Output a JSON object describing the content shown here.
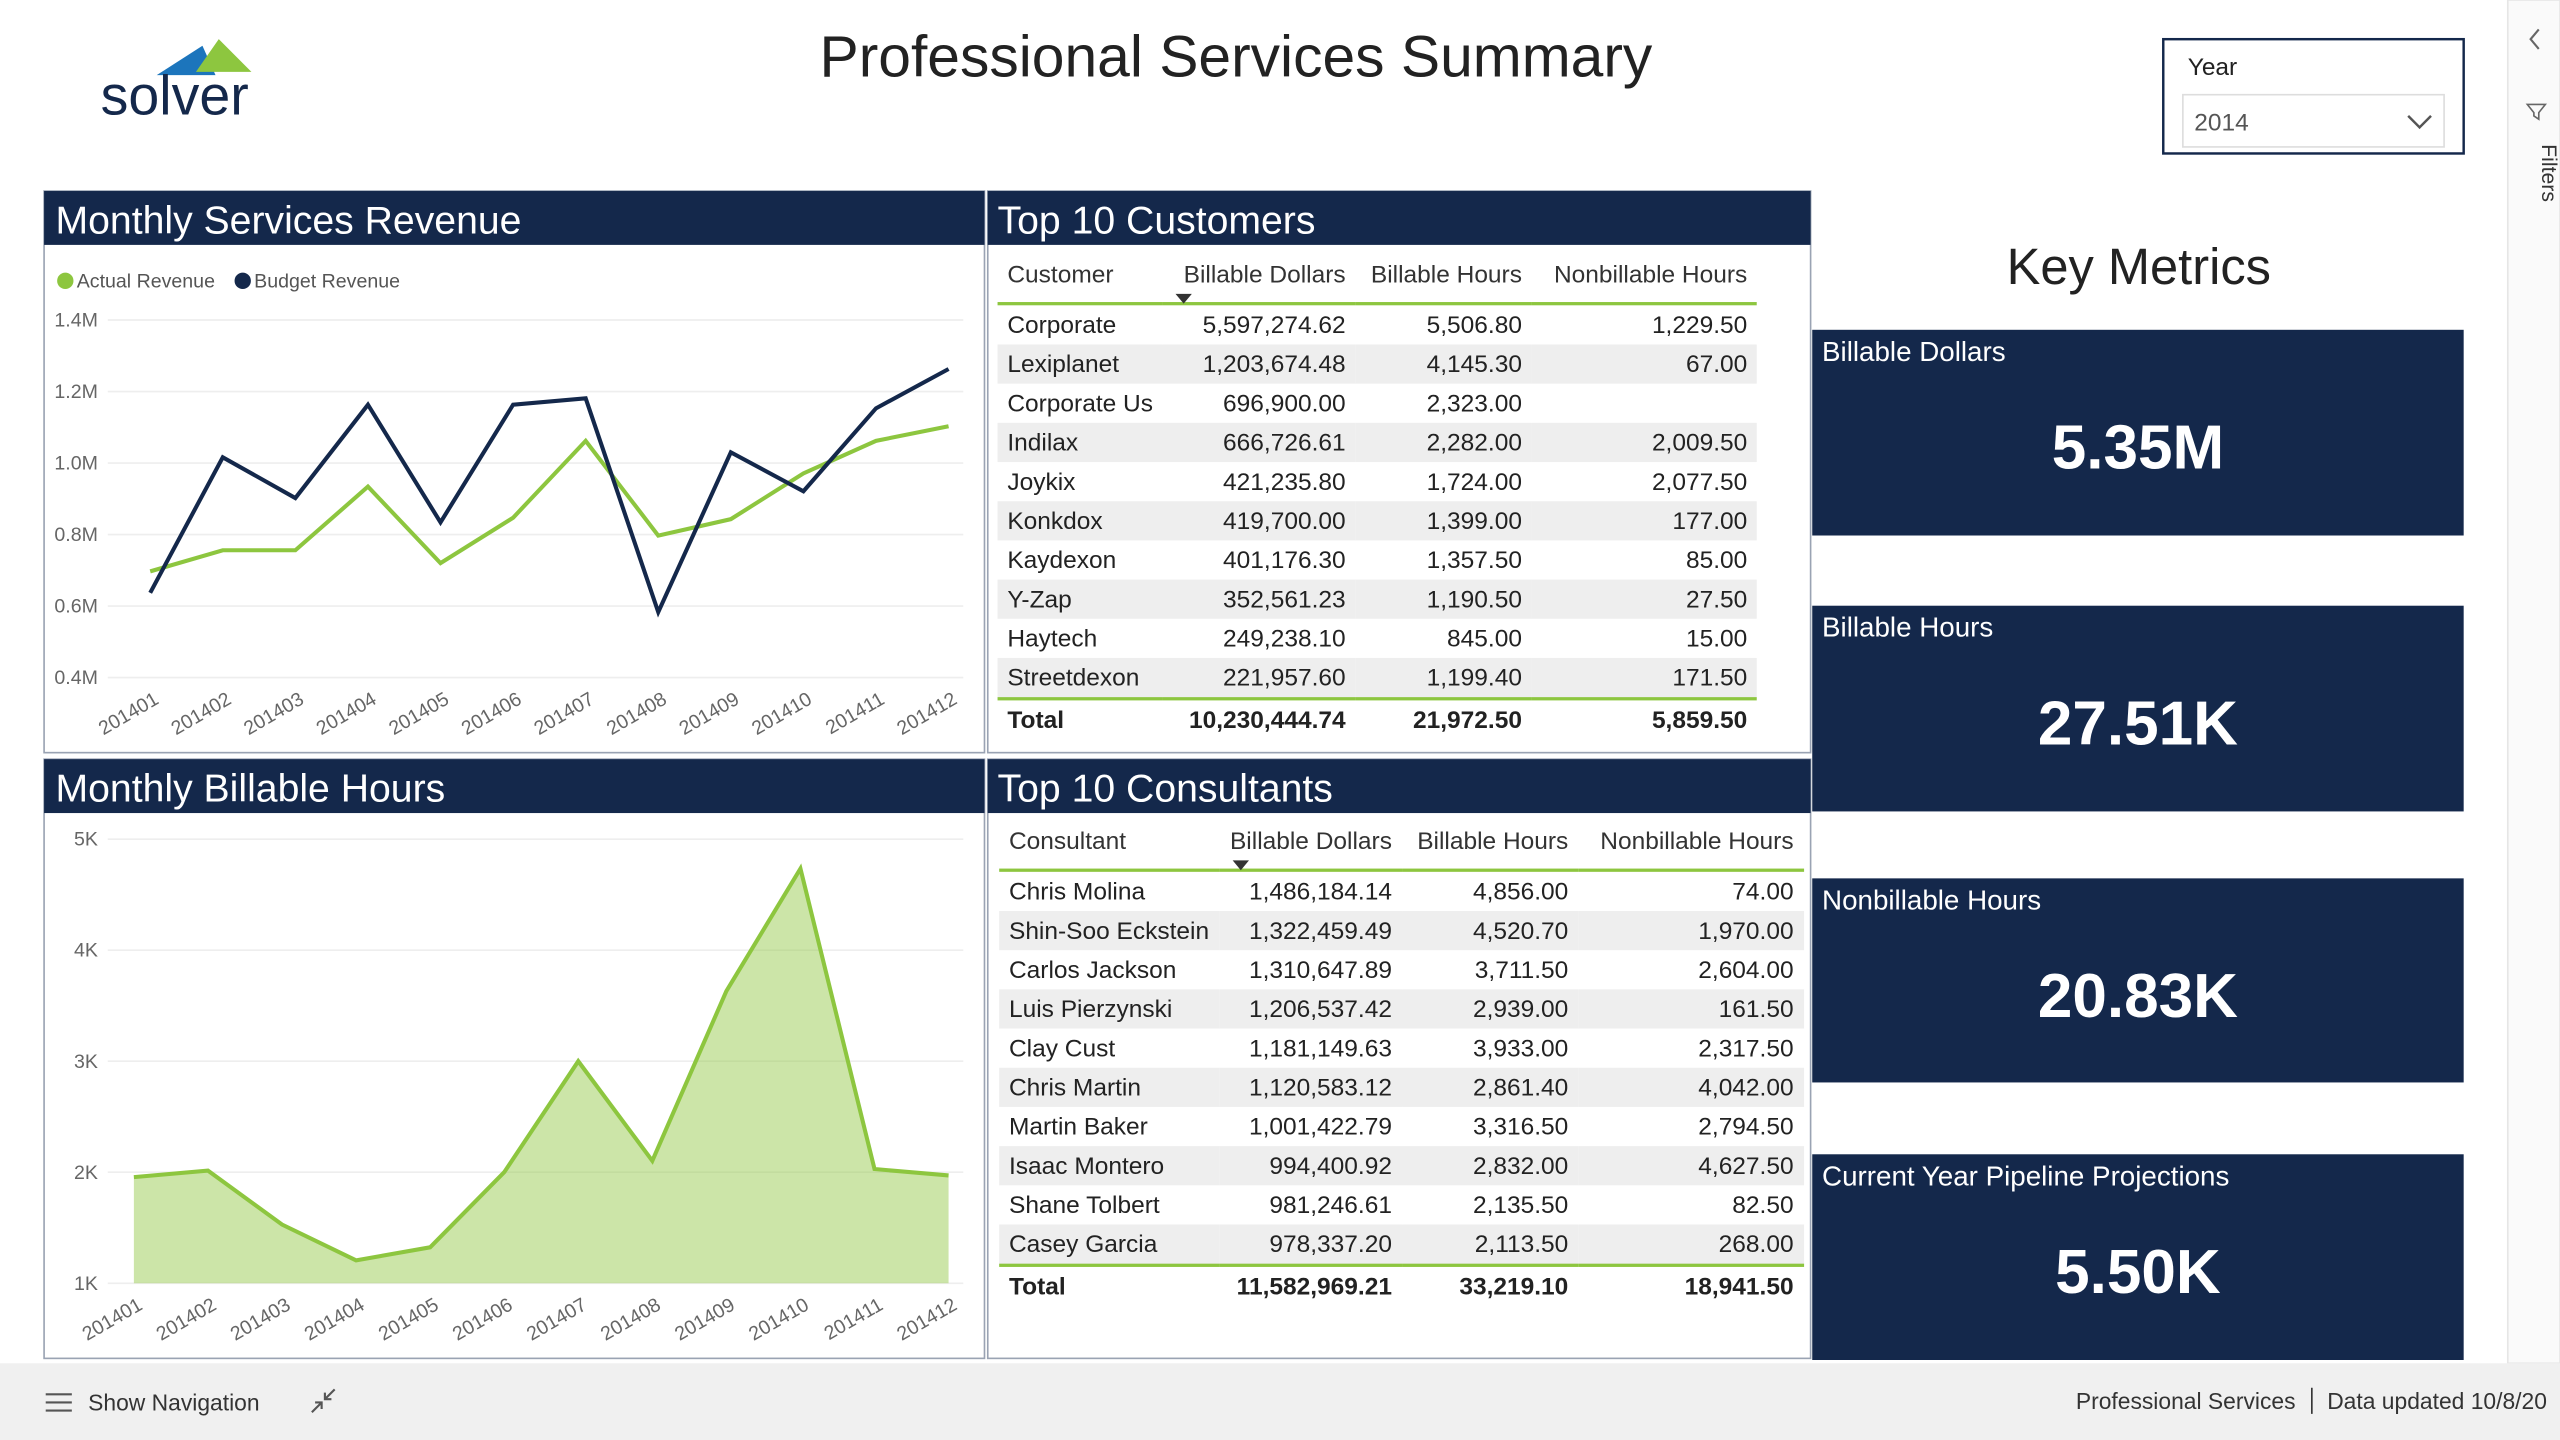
{
  "header": {
    "logo": "solver",
    "title": "Professional Services Summary",
    "slicer": {
      "label": "Year",
      "value": "2014"
    },
    "side_panel": "Filters"
  },
  "chart_data": [
    {
      "type": "line",
      "title": "Monthly Services Revenue",
      "categories": [
        "201401",
        "201402",
        "201403",
        "201404",
        "201405",
        "201406",
        "201407",
        "201408",
        "201409",
        "201410",
        "201411",
        "201412"
      ],
      "series": [
        {
          "name": "Actual Revenue",
          "color": "#8dc63f",
          "values": [
            697000,
            756000,
            756000,
            934000,
            720000,
            847000,
            1062000,
            797000,
            843000,
            971000,
            1062000,
            1103000
          ]
        },
        {
          "name": "Budget Revenue",
          "color": "#14284b",
          "values": [
            637000,
            1016000,
            902000,
            1163000,
            834000,
            1163000,
            1181000,
            583000,
            1030000,
            921000,
            1153000,
            1263000
          ]
        }
      ],
      "ylim": [
        400000,
        1400000
      ],
      "yticks": [
        {
          "value": 400000,
          "label": "0.4M"
        },
        {
          "value": 600000,
          "label": "0.6M"
        },
        {
          "value": 800000,
          "label": "0.8M"
        },
        {
          "value": 1000000,
          "label": "1.0M"
        },
        {
          "value": 1200000,
          "label": "1.2M"
        },
        {
          "value": 1400000,
          "label": "1.4M"
        }
      ],
      "grid": true,
      "legend": "top-left"
    },
    {
      "type": "area",
      "title": "Monthly Billable Hours",
      "categories": [
        "201401",
        "201402",
        "201403",
        "201404",
        "201405",
        "201406",
        "201407",
        "201408",
        "201409",
        "201410",
        "201411",
        "201412"
      ],
      "values": [
        1956,
        2015,
        1529,
        1206,
        1324,
        2000,
        3000,
        2103,
        3632,
        4735,
        2029,
        1971
      ],
      "color": "#8dc63f",
      "ylim": [
        1000,
        5000
      ],
      "yticks": [
        {
          "value": 1000,
          "label": "1K"
        },
        {
          "value": 2000,
          "label": "2K"
        },
        {
          "value": 3000,
          "label": "3K"
        },
        {
          "value": 4000,
          "label": "4K"
        },
        {
          "value": 5000,
          "label": "5K"
        }
      ],
      "grid": true
    }
  ],
  "tables": [
    {
      "title": "Top 10 Customers",
      "columns": [
        "Customer",
        "Billable Dollars",
        "Billable Hours",
        "Nonbillable Hours"
      ],
      "rows": [
        [
          "Corporate",
          "5,597,274.62",
          "5,506.80",
          "1,229.50"
        ],
        [
          "Lexiplanet",
          "1,203,674.48",
          "4,145.30",
          "67.00"
        ],
        [
          "Corporate Us",
          "696,900.00",
          "2,323.00",
          ""
        ],
        [
          "Indilax",
          "666,726.61",
          "2,282.00",
          "2,009.50"
        ],
        [
          "Joykix",
          "421,235.80",
          "1,724.00",
          "2,077.50"
        ],
        [
          "Konkdox",
          "419,700.00",
          "1,399.00",
          "177.00"
        ],
        [
          "Kaydexon",
          "401,176.30",
          "1,357.50",
          "85.00"
        ],
        [
          "Y-Zap",
          "352,561.23",
          "1,190.50",
          "27.50"
        ],
        [
          "Haytech",
          "249,238.10",
          "845.00",
          "15.00"
        ],
        [
          "Streetdexon",
          "221,957.60",
          "1,199.40",
          "171.50"
        ]
      ],
      "total": [
        "Total",
        "10,230,444.74",
        "21,972.50",
        "5,859.50"
      ]
    },
    {
      "title": "Top 10 Consultants",
      "columns": [
        "Consultant",
        "Billable Dollars",
        "Billable Hours",
        "Nonbillable Hours"
      ],
      "rows": [
        [
          "Chris Molina",
          "1,486,184.14",
          "4,856.00",
          "74.00"
        ],
        [
          "Shin-Soo Eckstein",
          "1,322,459.49",
          "4,520.70",
          "1,970.00"
        ],
        [
          "Carlos Jackson",
          "1,310,647.89",
          "3,711.50",
          "2,604.00"
        ],
        [
          "Luis Pierzynski",
          "1,206,537.42",
          "2,939.00",
          "161.50"
        ],
        [
          "Clay Cust",
          "1,181,149.63",
          "3,933.00",
          "2,317.50"
        ],
        [
          "Chris Martin",
          "1,120,583.12",
          "2,861.40",
          "4,042.00"
        ],
        [
          "Martin Baker",
          "1,001,422.79",
          "3,316.50",
          "2,794.50"
        ],
        [
          "Isaac Montero",
          "994,400.92",
          "2,832.00",
          "4,627.50"
        ],
        [
          "Shane Tolbert",
          "981,246.61",
          "2,135.50",
          "82.50"
        ],
        [
          "Casey Garcia",
          "978,337.20",
          "2,113.50",
          "268.00"
        ]
      ],
      "total": [
        "Total",
        "11,582,969.21",
        "33,219.10",
        "18,941.50"
      ]
    }
  ],
  "key_metrics": {
    "title": "Key Metrics",
    "cards": [
      {
        "label": "Billable Dollars",
        "value": "5.35M"
      },
      {
        "label": "Billable Hours",
        "value": "27.51K"
      },
      {
        "label": "Nonbillable Hours",
        "value": "20.83K"
      },
      {
        "label": "Current Year Pipeline Projections",
        "value": "5.50K"
      }
    ]
  },
  "footer": {
    "navigation": "Show Navigation",
    "report": "Professional Services",
    "updated": "Data updated 10/8/20"
  }
}
